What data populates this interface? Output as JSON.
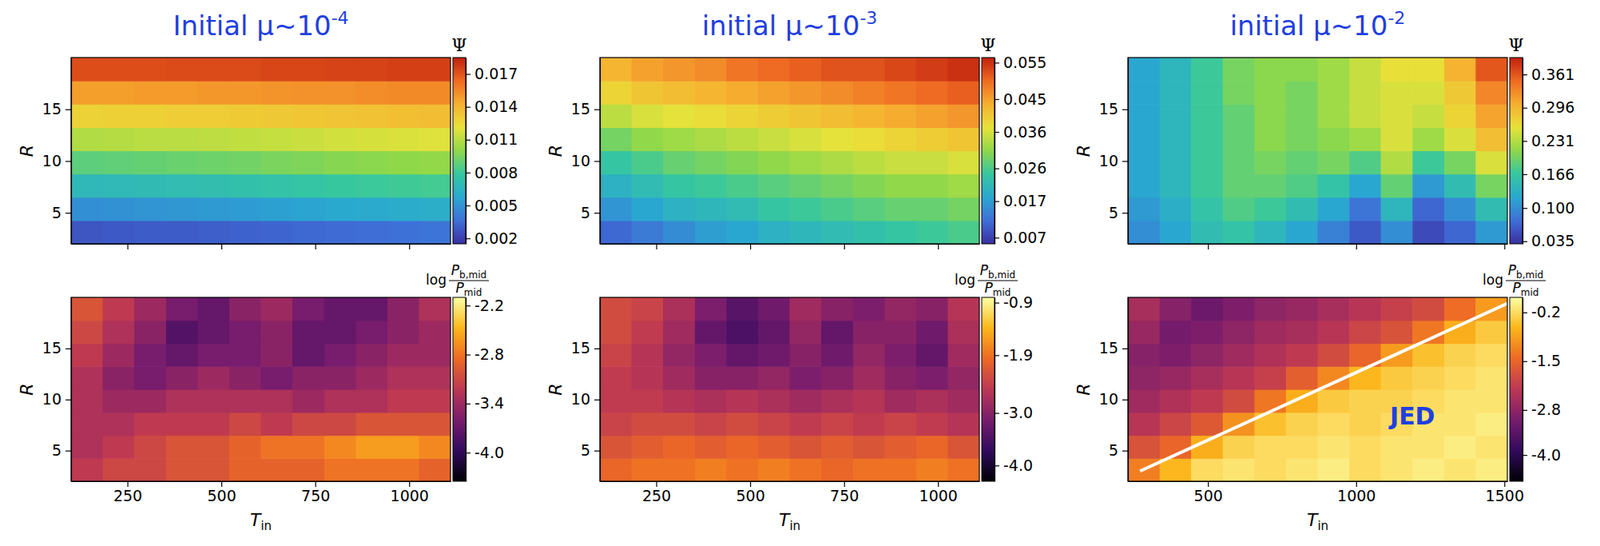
{
  "chart_data": [
    {
      "type": "heatmap",
      "title": {
        "text": "Initial μ~10",
        "superscript": "-4"
      },
      "ylabel": "R",
      "xlim": [
        100,
        1110
      ],
      "xticks": [
        250,
        500,
        750,
        1000
      ],
      "ylim": [
        2,
        20
      ],
      "yticks": [
        5,
        10,
        15
      ],
      "tick_labels": "y",
      "x_edges": [
        100,
        184,
        268,
        353,
        437,
        521,
        605,
        689,
        774,
        858,
        942,
        1026,
        1110
      ],
      "y_edges": [
        2,
        4.25,
        6.5,
        8.75,
        11,
        13.25,
        15.5,
        17.75,
        20
      ],
      "values": [
        [
          0.0028,
          0.0029,
          0.003,
          0.003,
          0.0031,
          0.0032,
          0.0033,
          0.0034,
          0.0035,
          0.0036,
          0.0037,
          0.0038
        ],
        [
          0.0048,
          0.0049,
          0.005,
          0.0051,
          0.0052,
          0.0053,
          0.0055,
          0.0056,
          0.0058,
          0.0059,
          0.006,
          0.0061
        ],
        [
          0.0068,
          0.0069,
          0.007,
          0.0071,
          0.0072,
          0.0074,
          0.0075,
          0.0077,
          0.0079,
          0.008,
          0.0081,
          0.0082
        ],
        [
          0.0088,
          0.0089,
          0.009,
          0.0091,
          0.0092,
          0.0093,
          0.0095,
          0.0096,
          0.0098,
          0.0099,
          0.01,
          0.0101
        ],
        [
          0.0108,
          0.0109,
          0.011,
          0.011,
          0.0111,
          0.0112,
          0.0113,
          0.0114,
          0.0116,
          0.0117,
          0.0118,
          0.0119
        ],
        [
          0.0128,
          0.0129,
          0.0129,
          0.013,
          0.013,
          0.0131,
          0.0132,
          0.0133,
          0.0134,
          0.0135,
          0.0136,
          0.0137
        ],
        [
          0.0148,
          0.0148,
          0.0149,
          0.0149,
          0.015,
          0.015,
          0.0151,
          0.0152,
          0.0152,
          0.0153,
          0.0154,
          0.0154
        ],
        [
          0.0172,
          0.0172,
          0.0172,
          0.0173,
          0.0173,
          0.0173,
          0.0174,
          0.0174,
          0.0175,
          0.0175,
          0.0176,
          0.0176
        ]
      ],
      "colorbar": {
        "label": "Ψ",
        "lim": [
          0.0015,
          0.0185
        ],
        "ticks": [
          0.002,
          0.005,
          0.008,
          0.011,
          0.014,
          0.017
        ],
        "colors": [
          "#3a2fa0",
          "#3f6fd8",
          "#2aa8d0",
          "#36c7a0",
          "#8fd84a",
          "#e8e23a",
          "#f6b030",
          "#ef6a22",
          "#c0200e"
        ]
      }
    },
    {
      "type": "heatmap",
      "title": {
        "text": "initial μ~10",
        "superscript": "-3"
      },
      "ylabel": "R",
      "xlim": [
        100,
        1110
      ],
      "xticks": [
        250,
        500,
        750,
        1000
      ],
      "ylim": [
        2,
        20
      ],
      "yticks": [
        5,
        10,
        15
      ],
      "tick_labels": "y",
      "x_edges": [
        100,
        184,
        268,
        353,
        437,
        521,
        605,
        689,
        774,
        858,
        942,
        1026,
        1110
      ],
      "y_edges": [
        2,
        4.25,
        6.5,
        8.75,
        11,
        13.25,
        15.5,
        17.75,
        20
      ],
      "values": [
        [
          0.011,
          0.013,
          0.015,
          0.017,
          0.018,
          0.02,
          0.021,
          0.022,
          0.023,
          0.024,
          0.025,
          0.026
        ],
        [
          0.016,
          0.018,
          0.02,
          0.021,
          0.022,
          0.024,
          0.025,
          0.026,
          0.027,
          0.028,
          0.028,
          0.029
        ],
        [
          0.02,
          0.022,
          0.024,
          0.025,
          0.026,
          0.027,
          0.028,
          0.029,
          0.03,
          0.031,
          0.031,
          0.032
        ],
        [
          0.024,
          0.026,
          0.028,
          0.029,
          0.03,
          0.031,
          0.032,
          0.033,
          0.034,
          0.035,
          0.035,
          0.036
        ],
        [
          0.029,
          0.031,
          0.032,
          0.033,
          0.034,
          0.035,
          0.036,
          0.037,
          0.038,
          0.039,
          0.04,
          0.041
        ],
        [
          0.034,
          0.036,
          0.037,
          0.038,
          0.039,
          0.04,
          0.041,
          0.042,
          0.043,
          0.044,
          0.045,
          0.046
        ],
        [
          0.039,
          0.041,
          0.042,
          0.043,
          0.044,
          0.045,
          0.046,
          0.047,
          0.048,
          0.049,
          0.05,
          0.051
        ],
        [
          0.043,
          0.045,
          0.046,
          0.047,
          0.049,
          0.05,
          0.051,
          0.052,
          0.052,
          0.053,
          0.054,
          0.055
        ]
      ],
      "colorbar": {
        "label": "Ψ",
        "lim": [
          0.0053,
          0.0564
        ],
        "ticks": [
          0.007,
          0.017,
          0.026,
          0.036,
          0.045,
          0.055
        ],
        "colors": [
          "#3a2fa0",
          "#3f6fd8",
          "#2aa8d0",
          "#36c7a0",
          "#8fd84a",
          "#e8e23a",
          "#f6b030",
          "#ef6a22",
          "#c0200e"
        ]
      }
    },
    {
      "type": "heatmap",
      "title": {
        "text": "initial μ~10",
        "superscript": "-2"
      },
      "ylabel": "R",
      "xlim": [
        230,
        1510
      ],
      "xticks": [
        500,
        1000,
        1500
      ],
      "ylim": [
        2,
        20
      ],
      "yticks": [
        5,
        10,
        15
      ],
      "tick_labels": "y",
      "x_edges": [
        230,
        337,
        443,
        550,
        657,
        763,
        870,
        977,
        1083,
        1190,
        1297,
        1403,
        1510
      ],
      "y_edges": [
        2,
        4.25,
        6.5,
        8.75,
        11,
        13.25,
        15.5,
        17.75,
        20
      ],
      "values": [
        [
          0.1,
          0.12,
          0.15,
          0.16,
          0.14,
          0.12,
          0.09,
          0.06,
          0.1,
          0.05,
          0.07,
          0.11
        ],
        [
          0.11,
          0.13,
          0.16,
          0.18,
          0.17,
          0.15,
          0.12,
          0.08,
          0.14,
          0.07,
          0.1,
          0.15
        ],
        [
          0.12,
          0.14,
          0.17,
          0.19,
          0.19,
          0.18,
          0.16,
          0.12,
          0.19,
          0.11,
          0.15,
          0.2
        ],
        [
          0.12,
          0.14,
          0.17,
          0.19,
          0.2,
          0.19,
          0.2,
          0.18,
          0.23,
          0.17,
          0.2,
          0.25
        ],
        [
          0.12,
          0.14,
          0.17,
          0.19,
          0.21,
          0.2,
          0.21,
          0.22,
          0.25,
          0.22,
          0.25,
          0.29
        ],
        [
          0.12,
          0.14,
          0.17,
          0.19,
          0.21,
          0.2,
          0.22,
          0.24,
          0.25,
          0.24,
          0.27,
          0.31
        ],
        [
          0.12,
          0.14,
          0.17,
          0.2,
          0.21,
          0.2,
          0.22,
          0.24,
          0.25,
          0.25,
          0.28,
          0.33
        ],
        [
          0.12,
          0.14,
          0.17,
          0.2,
          0.21,
          0.21,
          0.22,
          0.24,
          0.26,
          0.26,
          0.3,
          0.36
        ]
      ],
      "colorbar": {
        "label": "Ψ",
        "lim": [
          0.03,
          0.394
        ],
        "ticks": [
          0.035,
          {
            "value": 0.1,
            "label": "0.100"
          },
          0.166,
          0.231,
          0.296,
          0.361
        ],
        "colors": [
          "#3a2fa0",
          "#3f6fd8",
          "#2aa8d0",
          "#36c7a0",
          "#8fd84a",
          "#e8e23a",
          "#f6b030",
          "#ef6a22",
          "#c0200e"
        ]
      }
    },
    {
      "type": "heatmap",
      "ylabel": "R",
      "xlabel": {
        "text": "T",
        "subscript": "in"
      },
      "xlim": [
        100,
        1110
      ],
      "xticks": [
        250,
        500,
        750,
        1000
      ],
      "ylim": [
        2,
        20
      ],
      "yticks": [
        5,
        10,
        15
      ],
      "x_edges": [
        100,
        184,
        268,
        353,
        437,
        521,
        605,
        689,
        774,
        858,
        942,
        1026,
        1110
      ],
      "y_edges": [
        2,
        4.25,
        6.5,
        8.75,
        11,
        13.25,
        15.5,
        17.75,
        20
      ],
      "values": [
        [
          -3.2,
          -3.1,
          -3.1,
          -3.0,
          -3.0,
          -2.9,
          -2.9,
          -2.9,
          -2.8,
          -2.8,
          -2.8,
          -2.9
        ],
        [
          -3.3,
          -3.2,
          -3.1,
          -3.0,
          -3.0,
          -2.9,
          -2.8,
          -2.8,
          -2.7,
          -2.6,
          -2.6,
          -2.7
        ],
        [
          -3.3,
          -3.3,
          -3.2,
          -3.2,
          -3.2,
          -3.1,
          -3.2,
          -3.1,
          -3.1,
          -3.0,
          -3.0,
          -3.0
        ],
        [
          -3.3,
          -3.4,
          -3.4,
          -3.3,
          -3.3,
          -3.3,
          -3.3,
          -3.4,
          -3.3,
          -3.3,
          -3.2,
          -3.2
        ],
        [
          -3.3,
          -3.5,
          -3.6,
          -3.5,
          -3.4,
          -3.5,
          -3.6,
          -3.5,
          -3.5,
          -3.4,
          -3.3,
          -3.3
        ],
        [
          -3.2,
          -3.4,
          -3.6,
          -3.7,
          -3.6,
          -3.6,
          -3.5,
          -3.7,
          -3.6,
          -3.5,
          -3.4,
          -3.4
        ],
        [
          -3.1,
          -3.3,
          -3.5,
          -3.8,
          -3.7,
          -3.6,
          -3.5,
          -3.7,
          -3.7,
          -3.6,
          -3.5,
          -3.4
        ],
        [
          -3.0,
          -3.2,
          -3.4,
          -3.6,
          -3.7,
          -3.5,
          -3.4,
          -3.6,
          -3.7,
          -3.7,
          -3.5,
          -3.3
        ]
      ],
      "colorbar": {
        "label": {
          "prefix": "log",
          "numerator": "P",
          "numerator_sub": "b,mid",
          "denominator": "P",
          "denominator_sub": "mid"
        },
        "lim": [
          -4.35,
          -2.1
        ],
        "ticks": [
          -2.2,
          -2.8,
          -3.4,
          {
            "value": -4,
            "label": "-4.0"
          }
        ],
        "colors": [
          "#000004",
          "#320a5e",
          "#781c6d",
          "#bc3754",
          "#ed6925",
          "#fbb61a",
          "#fcffa4"
        ]
      }
    },
    {
      "type": "heatmap",
      "ylabel": "R",
      "xlabel": {
        "text": "T",
        "subscript": "in"
      },
      "xlim": [
        100,
        1110
      ],
      "xticks": [
        250,
        500,
        750,
        1000
      ],
      "ylim": [
        2,
        20
      ],
      "yticks": [
        5,
        10,
        15
      ],
      "x_edges": [
        100,
        184,
        268,
        353,
        437,
        521,
        605,
        689,
        774,
        858,
        942,
        1026,
        1110
      ],
      "y_edges": [
        2,
        4.25,
        6.5,
        8.75,
        11,
        13.25,
        15.5,
        17.75,
        20
      ],
      "values": [
        [
          -2.0,
          -1.9,
          -1.9,
          -1.8,
          -1.9,
          -1.8,
          -1.9,
          -2.0,
          -1.9,
          -1.9,
          -1.8,
          -1.9
        ],
        [
          -2.2,
          -2.1,
          -2.0,
          -2.1,
          -2.0,
          -2.1,
          -2.2,
          -2.1,
          -2.2,
          -2.1,
          -2.0,
          -2.2
        ],
        [
          -2.4,
          -2.3,
          -2.3,
          -2.4,
          -2.3,
          -2.4,
          -2.5,
          -2.4,
          -2.5,
          -2.4,
          -2.5,
          -2.6
        ],
        [
          -2.5,
          -2.5,
          -2.6,
          -2.7,
          -2.6,
          -2.7,
          -2.8,
          -2.7,
          -2.6,
          -2.8,
          -2.7,
          -2.8
        ],
        [
          -2.5,
          -2.6,
          -2.8,
          -3.0,
          -3.0,
          -2.9,
          -3.1,
          -3.0,
          -2.8,
          -3.0,
          -3.1,
          -2.9
        ],
        [
          -2.4,
          -2.6,
          -2.9,
          -3.1,
          -3.3,
          -3.2,
          -3.0,
          -3.2,
          -2.9,
          -3.1,
          -3.3,
          -2.8
        ],
        [
          -2.3,
          -2.5,
          -2.8,
          -3.3,
          -3.5,
          -3.3,
          -2.9,
          -3.3,
          -3.0,
          -3.0,
          -3.2,
          -2.7
        ],
        [
          -2.3,
          -2.4,
          -2.7,
          -3.1,
          -3.4,
          -3.2,
          -2.8,
          -3.0,
          -3.1,
          -2.9,
          -3.0,
          -2.6
        ]
      ],
      "colorbar": {
        "label": {
          "prefix": "log",
          "numerator": "P",
          "numerator_sub": "b,mid",
          "denominator": "P",
          "denominator_sub": "mid"
        },
        "lim": [
          -4.3,
          -0.8
        ],
        "ticks": [
          -0.9,
          -1.9,
          {
            "value": -3,
            "label": "-3.0"
          },
          {
            "value": -4,
            "label": "-4.0"
          }
        ],
        "colors": [
          "#000004",
          "#320a5e",
          "#781c6d",
          "#bc3754",
          "#ed6925",
          "#fbb61a",
          "#fcffa4"
        ]
      }
    },
    {
      "type": "heatmap",
      "ylabel": "R",
      "xlabel": {
        "text": "T",
        "subscript": "in"
      },
      "xlim": [
        230,
        1510
      ],
      "xticks": [
        500,
        1000,
        1500
      ],
      "ylim": [
        2,
        20
      ],
      "yticks": [
        5,
        10,
        15
      ],
      "x_edges": [
        230,
        337,
        443,
        550,
        657,
        763,
        870,
        977,
        1083,
        1190,
        1297,
        1403,
        1510
      ],
      "y_edges": [
        2,
        4.25,
        6.5,
        8.75,
        11,
        13.25,
        15.5,
        17.75,
        20
      ],
      "values": [
        [
          -1.2,
          -0.6,
          -0.2,
          -0.1,
          -0.2,
          -0.1,
          0.0,
          -0.2,
          -0.1,
          0.0,
          -0.1,
          0.0
        ],
        [
          -1.8,
          -1.5,
          -0.7,
          -0.3,
          -0.2,
          -0.2,
          -0.1,
          -0.2,
          -0.1,
          -0.1,
          0.0,
          -0.1
        ],
        [
          -2.3,
          -2.0,
          -1.7,
          -1.0,
          -0.5,
          -0.3,
          -0.2,
          -0.3,
          -0.2,
          -0.1,
          -0.1,
          0.0
        ],
        [
          -2.6,
          -2.4,
          -2.2,
          -1.9,
          -1.3,
          -0.7,
          -0.4,
          -0.3,
          -0.3,
          -0.2,
          -0.1,
          -0.1
        ],
        [
          -2.8,
          -2.7,
          -2.5,
          -2.3,
          -2.1,
          -1.6,
          -1.1,
          -0.6,
          -0.4,
          -0.3,
          -0.2,
          -0.1
        ],
        [
          -2.9,
          -3.0,
          -2.8,
          -2.6,
          -2.4,
          -2.2,
          -1.9,
          -1.5,
          -0.9,
          -0.5,
          -0.3,
          -0.2
        ],
        [
          -2.7,
          -3.1,
          -3.0,
          -2.8,
          -2.6,
          -2.5,
          -2.3,
          -2.0,
          -1.8,
          -1.3,
          -0.7,
          -0.4
        ],
        [
          -2.5,
          -2.9,
          -3.2,
          -3.0,
          -2.8,
          -2.7,
          -2.5,
          -2.3,
          -2.1,
          -1.9,
          -1.4,
          -0.9
        ]
      ],
      "line": {
        "x": [
          271,
          1510
        ],
        "y": [
          3,
          19.4
        ],
        "color": "#ffffff"
      },
      "annotations": [
        {
          "text": "JED",
          "x": 1190,
          "y": 8.2,
          "color": "#1f3fe0"
        }
      ],
      "colorbar": {
        "label": {
          "prefix": "log",
          "numerator": "P",
          "numerator_sub": "b,mid",
          "denominator": "P",
          "denominator_sub": "mid"
        },
        "lim": [
          -4.7,
          0.2
        ],
        "ticks": [
          -0.2,
          -1.5,
          -2.8,
          {
            "value": -4,
            "label": "-4.0"
          }
        ],
        "colors": [
          "#000004",
          "#320a5e",
          "#781c6d",
          "#bc3754",
          "#ed6925",
          "#fbb61a",
          "#fcffa4"
        ]
      }
    }
  ]
}
